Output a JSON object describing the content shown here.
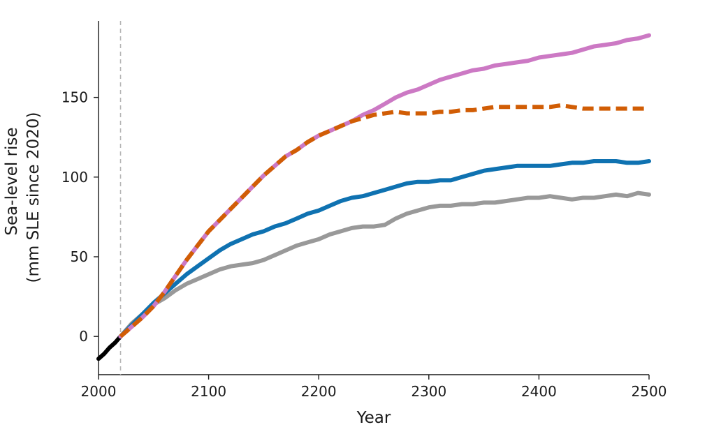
{
  "chart_data": {
    "type": "line",
    "title": "",
    "xlabel": "Year",
    "ylabel": "Sea-level rise",
    "ylabel_sub": "(mm SLE since 2020)",
    "xlim": [
      2000,
      2500
    ],
    "ylim": [
      -24,
      198
    ],
    "xticks": [
      2000,
      2100,
      2200,
      2300,
      2400,
      2500
    ],
    "yticks": [
      0,
      50,
      100,
      150
    ],
    "grid": false,
    "legend": "none",
    "reference_line": {
      "x": 2020,
      "style": "dashed",
      "color": "#b5b5b5"
    },
    "series": [
      {
        "color": "#000000",
        "style": "solid",
        "points": [
          [
            2000,
            -14
          ],
          [
            2005,
            -11
          ],
          [
            2010,
            -7
          ],
          [
            2015,
            -4
          ],
          [
            2020,
            0
          ]
        ]
      },
      {
        "color": "#999999",
        "style": "solid",
        "points": [
          [
            2020,
            0
          ],
          [
            2030,
            8
          ],
          [
            2040,
            14
          ],
          [
            2050,
            20
          ],
          [
            2060,
            24
          ],
          [
            2070,
            29
          ],
          [
            2080,
            33
          ],
          [
            2090,
            36
          ],
          [
            2100,
            39
          ],
          [
            2110,
            42
          ],
          [
            2120,
            44
          ],
          [
            2130,
            45
          ],
          [
            2140,
            46
          ],
          [
            2150,
            48
          ],
          [
            2160,
            51
          ],
          [
            2170,
            54
          ],
          [
            2180,
            57
          ],
          [
            2190,
            59
          ],
          [
            2200,
            61
          ],
          [
            2210,
            64
          ],
          [
            2220,
            66
          ],
          [
            2230,
            68
          ],
          [
            2240,
            69
          ],
          [
            2250,
            69
          ],
          [
            2260,
            70
          ],
          [
            2270,
            74
          ],
          [
            2280,
            77
          ],
          [
            2290,
            79
          ],
          [
            2300,
            81
          ],
          [
            2310,
            82
          ],
          [
            2320,
            82
          ],
          [
            2330,
            83
          ],
          [
            2340,
            83
          ],
          [
            2350,
            84
          ],
          [
            2360,
            84
          ],
          [
            2370,
            85
          ],
          [
            2380,
            86
          ],
          [
            2390,
            87
          ],
          [
            2400,
            87
          ],
          [
            2410,
            88
          ],
          [
            2420,
            87
          ],
          [
            2430,
            86
          ],
          [
            2440,
            87
          ],
          [
            2450,
            87
          ],
          [
            2460,
            88
          ],
          [
            2470,
            89
          ],
          [
            2480,
            88
          ],
          [
            2490,
            90
          ],
          [
            2500,
            89
          ]
        ]
      },
      {
        "color": "#0f72b1",
        "style": "solid",
        "points": [
          [
            2020,
            0
          ],
          [
            2030,
            7
          ],
          [
            2040,
            14
          ],
          [
            2050,
            21
          ],
          [
            2060,
            27
          ],
          [
            2070,
            33
          ],
          [
            2080,
            39
          ],
          [
            2090,
            44
          ],
          [
            2100,
            49
          ],
          [
            2110,
            54
          ],
          [
            2120,
            58
          ],
          [
            2130,
            61
          ],
          [
            2140,
            64
          ],
          [
            2150,
            66
          ],
          [
            2160,
            69
          ],
          [
            2170,
            71
          ],
          [
            2180,
            74
          ],
          [
            2190,
            77
          ],
          [
            2200,
            79
          ],
          [
            2210,
            82
          ],
          [
            2220,
            85
          ],
          [
            2230,
            87
          ],
          [
            2240,
            88
          ],
          [
            2250,
            90
          ],
          [
            2260,
            92
          ],
          [
            2270,
            94
          ],
          [
            2280,
            96
          ],
          [
            2290,
            97
          ],
          [
            2300,
            97
          ],
          [
            2310,
            98
          ],
          [
            2320,
            98
          ],
          [
            2330,
            100
          ],
          [
            2340,
            102
          ],
          [
            2350,
            104
          ],
          [
            2360,
            105
          ],
          [
            2370,
            106
          ],
          [
            2380,
            107
          ],
          [
            2390,
            107
          ],
          [
            2400,
            107
          ],
          [
            2410,
            107
          ],
          [
            2420,
            108
          ],
          [
            2430,
            109
          ],
          [
            2440,
            109
          ],
          [
            2450,
            110
          ],
          [
            2460,
            110
          ],
          [
            2470,
            110
          ],
          [
            2480,
            109
          ],
          [
            2490,
            109
          ],
          [
            2500,
            110
          ]
        ]
      },
      {
        "color": "#cc79c4",
        "style": "solid",
        "points": [
          [
            2020,
            0
          ],
          [
            2030,
            6
          ],
          [
            2040,
            12
          ],
          [
            2050,
            19
          ],
          [
            2060,
            28
          ],
          [
            2070,
            38
          ],
          [
            2080,
            48
          ],
          [
            2090,
            57
          ],
          [
            2100,
            66
          ],
          [
            2110,
            73
          ],
          [
            2120,
            80
          ],
          [
            2130,
            87
          ],
          [
            2140,
            94
          ],
          [
            2150,
            101
          ],
          [
            2160,
            107
          ],
          [
            2170,
            113
          ],
          [
            2180,
            117
          ],
          [
            2190,
            122
          ],
          [
            2200,
            126
          ],
          [
            2210,
            129
          ],
          [
            2220,
            132
          ],
          [
            2230,
            135
          ],
          [
            2240,
            139
          ],
          [
            2250,
            142
          ],
          [
            2260,
            146
          ],
          [
            2270,
            150
          ],
          [
            2280,
            153
          ],
          [
            2290,
            155
          ],
          [
            2300,
            158
          ],
          [
            2310,
            161
          ],
          [
            2320,
            163
          ],
          [
            2330,
            165
          ],
          [
            2340,
            167
          ],
          [
            2350,
            168
          ],
          [
            2360,
            170
          ],
          [
            2370,
            171
          ],
          [
            2380,
            172
          ],
          [
            2390,
            173
          ],
          [
            2400,
            175
          ],
          [
            2410,
            176
          ],
          [
            2420,
            177
          ],
          [
            2430,
            178
          ],
          [
            2440,
            180
          ],
          [
            2450,
            182
          ],
          [
            2460,
            183
          ],
          [
            2470,
            184
          ],
          [
            2480,
            186
          ],
          [
            2490,
            187
          ],
          [
            2500,
            189
          ]
        ]
      },
      {
        "color": "#d15d05",
        "style": "dashed",
        "points": [
          [
            2020,
            0
          ],
          [
            2030,
            6
          ],
          [
            2040,
            12
          ],
          [
            2050,
            19
          ],
          [
            2060,
            28
          ],
          [
            2070,
            38
          ],
          [
            2080,
            48
          ],
          [
            2090,
            57
          ],
          [
            2100,
            66
          ],
          [
            2110,
            73
          ],
          [
            2120,
            80
          ],
          [
            2130,
            87
          ],
          [
            2140,
            94
          ],
          [
            2150,
            101
          ],
          [
            2160,
            107
          ],
          [
            2170,
            113
          ],
          [
            2180,
            117
          ],
          [
            2190,
            122
          ],
          [
            2200,
            126
          ],
          [
            2210,
            129
          ],
          [
            2220,
            132
          ],
          [
            2230,
            135
          ],
          [
            2240,
            137
          ],
          [
            2250,
            139
          ],
          [
            2260,
            140
          ],
          [
            2270,
            141
          ],
          [
            2280,
            140
          ],
          [
            2290,
            140
          ],
          [
            2300,
            140
          ],
          [
            2310,
            141
          ],
          [
            2320,
            141
          ],
          [
            2330,
            142
          ],
          [
            2340,
            142
          ],
          [
            2350,
            143
          ],
          [
            2360,
            144
          ],
          [
            2370,
            144
          ],
          [
            2380,
            144
          ],
          [
            2390,
            144
          ],
          [
            2400,
            144
          ],
          [
            2410,
            144
          ],
          [
            2420,
            145
          ],
          [
            2430,
            144
          ],
          [
            2440,
            143
          ],
          [
            2450,
            143
          ],
          [
            2460,
            143
          ],
          [
            2470,
            143
          ],
          [
            2480,
            143
          ],
          [
            2490,
            143
          ],
          [
            2500,
            143
          ]
        ]
      }
    ]
  }
}
